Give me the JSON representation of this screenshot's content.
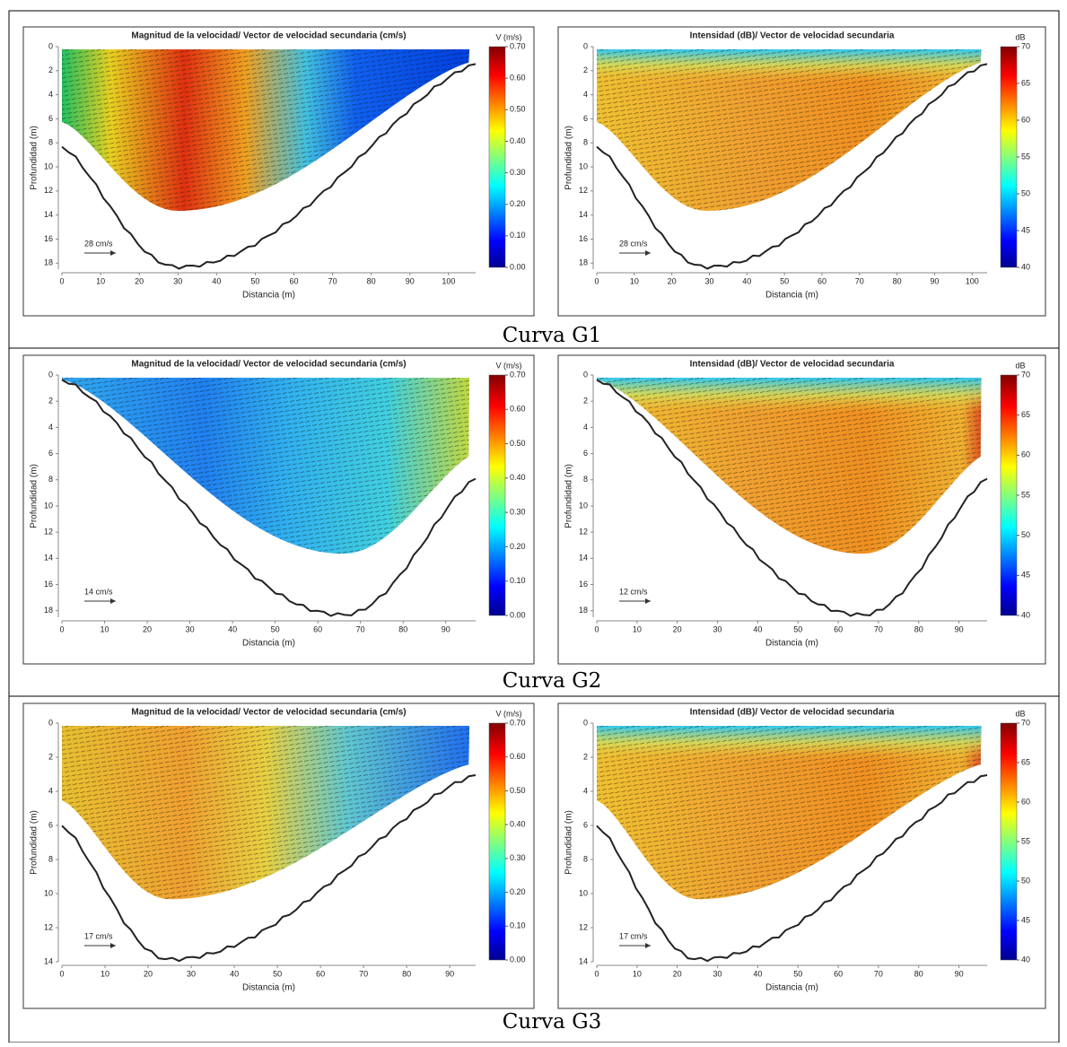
{
  "rows": [
    {
      "caption": "Curva G1",
      "panels": [
        {
          "title": "Magnitud de la velocidad/ Vector de velocidad secundaria (cm/s)",
          "xlabel": "Distancia (m)",
          "ylabel": "Profundidad (m)",
          "xlim": [
            0,
            107
          ],
          "ylim": [
            0,
            18.5
          ],
          "xticks": [
            0,
            10,
            20,
            30,
            40,
            50,
            60,
            70,
            80,
            90,
            100
          ],
          "yticks": [
            0,
            2,
            4,
            6,
            8,
            10,
            12,
            14,
            16,
            18
          ],
          "scale_label": "28 cm/s",
          "colorbar": {
            "label": "V (m/s)",
            "lim": [
              0,
              0.7
            ],
            "ticks": [
              {
                "value": 0,
                "label": "0.00"
              },
              {
                "value": 0.1,
                "label": "0.10"
              },
              {
                "value": 0.2,
                "label": "0.20"
              },
              {
                "value": 0.3,
                "label": "0.30"
              },
              {
                "value": 0.4,
                "label": "0.40"
              },
              {
                "value": 0.5,
                "label": "0.50"
              },
              {
                "value": 0.6,
                "label": "0.60"
              },
              {
                "value": 0.7,
                "label": "0.70"
              }
            ]
          }
        },
        {
          "title": "Intensidad (dB)/ Vector de velocidad secundaria",
          "xlabel": "Distancia (m)",
          "ylabel": "Profundidad (m)",
          "xlim": [
            0,
            104
          ],
          "ylim": [
            0,
            18.5
          ],
          "xticks": [
            0,
            10,
            20,
            30,
            40,
            50,
            60,
            70,
            80,
            90,
            100
          ],
          "yticks": [
            0,
            2,
            4,
            6,
            8,
            10,
            12,
            14,
            16,
            18
          ],
          "scale_label": "28 cm/s",
          "colorbar": {
            "label": "dB",
            "lim": [
              40,
              70
            ],
            "ticks": [
              40,
              45,
              50,
              55,
              60,
              65,
              70
            ]
          }
        }
      ]
    },
    {
      "caption": "Curva G2",
      "panels": [
        {
          "title": "Magnitud de la velocidad/ Vector de velocidad secundaria (cm/s)",
          "xlabel": "Distancia (m)",
          "ylabel": "Profundidad (m)",
          "xlim": [
            0,
            97
          ],
          "ylim": [
            0,
            18.5
          ],
          "xticks": [
            0,
            10,
            20,
            30,
            40,
            50,
            60,
            70,
            80,
            90
          ],
          "yticks": [
            0,
            2,
            4,
            6,
            8,
            10,
            12,
            14,
            16,
            18
          ],
          "scale_label": "14 cm/s",
          "colorbar": {
            "label": "V (m/s)",
            "lim": [
              0,
              0.7
            ],
            "ticks": [
              {
                "value": 0,
                "label": "0.00"
              },
              {
                "value": 0.1,
                "label": "0.10"
              },
              {
                "value": 0.2,
                "label": "0.20"
              },
              {
                "value": 0.3,
                "label": "0.30"
              },
              {
                "value": 0.4,
                "label": "0.40"
              },
              {
                "value": 0.5,
                "label": "0.50"
              },
              {
                "value": 0.6,
                "label": "0.60"
              },
              {
                "value": 0.7,
                "label": "0.70"
              }
            ]
          }
        },
        {
          "title": "Intensidad (dB)/ Vector de velocidad secundaria",
          "xlabel": "Distancia (m)",
          "ylabel": "Profundidad (m)",
          "xlim": [
            0,
            97
          ],
          "ylim": [
            0,
            18.5
          ],
          "xticks": [
            0,
            10,
            20,
            30,
            40,
            50,
            60,
            70,
            80,
            90
          ],
          "yticks": [
            0,
            2,
            4,
            6,
            8,
            10,
            12,
            14,
            16,
            18
          ],
          "scale_label": "12 cm/s",
          "colorbar": {
            "label": "dB",
            "lim": [
              40,
              70
            ],
            "ticks": [
              40,
              45,
              50,
              55,
              60,
              65,
              70
            ]
          }
        }
      ]
    },
    {
      "caption": "Curva G3",
      "panels": [
        {
          "title": "Magnitud de la velocidad/ Vector de velocidad secundaria (cm/s)",
          "xlabel": "Distancia (m)",
          "ylabel": "Profundidad (m)",
          "xlim": [
            0,
            96
          ],
          "ylim": [
            0,
            14
          ],
          "xticks": [
            0,
            10,
            20,
            30,
            40,
            50,
            60,
            70,
            80,
            90
          ],
          "yticks": [
            0,
            2,
            4,
            6,
            8,
            10,
            12,
            14
          ],
          "scale_label": "17 cm/s",
          "colorbar": {
            "label": "V (m/s)",
            "lim": [
              0,
              0.7
            ],
            "ticks": [
              {
                "value": 0,
                "label": "0.00"
              },
              {
                "value": 0.1,
                "label": "0.10"
              },
              {
                "value": 0.2,
                "label": "0.20"
              },
              {
                "value": 0.3,
                "label": "0.30"
              },
              {
                "value": 0.4,
                "label": "0.40"
              },
              {
                "value": 0.5,
                "label": "0.50"
              },
              {
                "value": 0.6,
                "label": "0.60"
              },
              {
                "value": 0.7,
                "label": "0.70"
              }
            ]
          }
        },
        {
          "title": "Intensidad (dB)/ Vector de velocidad secundaria",
          "xlabel": "Distancia (m)",
          "ylabel": "Profundidad (m)",
          "xlim": [
            0,
            97
          ],
          "ylim": [
            0,
            14
          ],
          "xticks": [
            0,
            10,
            20,
            30,
            40,
            50,
            60,
            70,
            80,
            90
          ],
          "yticks": [
            0,
            2,
            4,
            6,
            8,
            10,
            12,
            14
          ],
          "scale_label": "17 cm/s",
          "colorbar": {
            "label": "dB",
            "lim": [
              40,
              70
            ],
            "ticks": [
              40,
              45,
              50,
              55,
              60,
              65,
              70
            ]
          }
        }
      ]
    }
  ]
}
